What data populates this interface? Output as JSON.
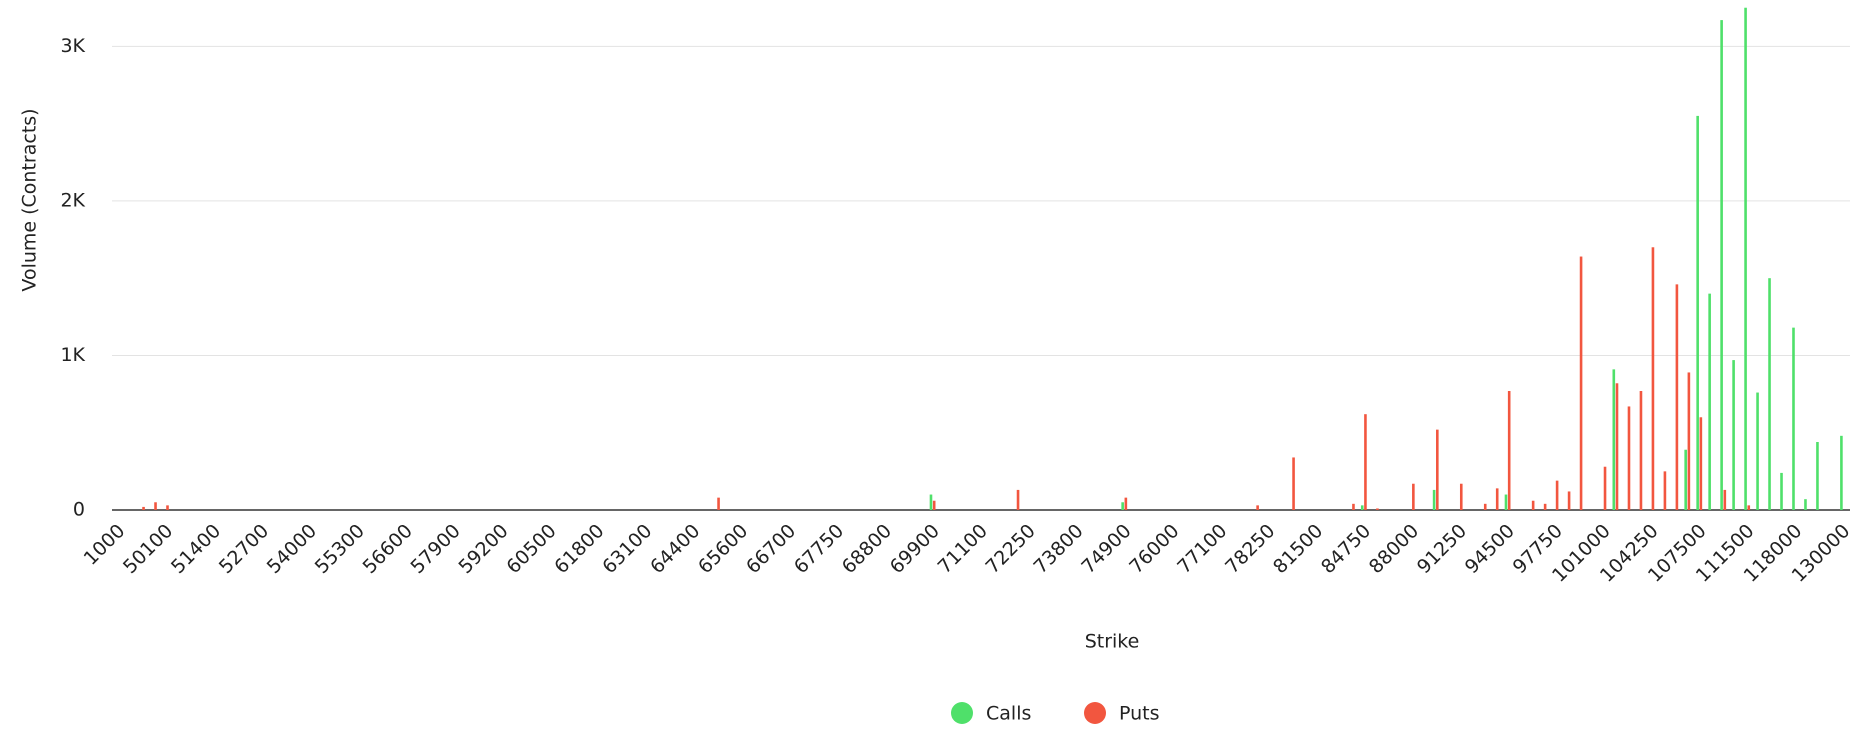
{
  "chart_data": {
    "type": "bar",
    "x_label": "Strike",
    "y_label": "Volume (Contracts)",
    "categories": [
      "1000",
      null,
      null,
      null,
      "50100",
      null,
      null,
      null,
      "51400",
      null,
      null,
      null,
      "52700",
      null,
      null,
      null,
      "54000",
      null,
      null,
      null,
      "55300",
      null,
      null,
      null,
      "56600",
      null,
      null,
      null,
      "57900",
      null,
      null,
      null,
      "59200",
      null,
      null,
      null,
      "60500",
      null,
      null,
      null,
      "61800",
      null,
      null,
      null,
      "63100",
      null,
      null,
      null,
      "64400",
      null,
      null,
      null,
      "65600",
      null,
      null,
      null,
      "66700",
      null,
      null,
      null,
      "67750",
      null,
      null,
      null,
      "68800",
      null,
      null,
      null,
      "69900",
      null,
      null,
      null,
      "71100",
      null,
      null,
      null,
      "72250",
      null,
      null,
      null,
      "73800",
      null,
      null,
      null,
      "74900",
      null,
      null,
      null,
      "76000",
      null,
      null,
      null,
      "77100",
      null,
      null,
      null,
      "78250",
      null,
      null,
      null,
      "81500",
      null,
      null,
      null,
      "84750",
      null,
      null,
      null,
      "88000",
      null,
      null,
      null,
      "91250",
      null,
      null,
      null,
      "94500",
      null,
      null,
      null,
      "97750",
      null,
      null,
      null,
      "101000",
      null,
      null,
      null,
      "104250",
      null,
      null,
      null,
      "107500",
      null,
      null,
      null,
      "111500",
      null,
      null,
      null,
      "118000",
      null,
      null,
      null,
      "130000"
    ],
    "series": [
      {
        "name": "Calls",
        "color": "#4fe06a",
        "values": [
          0,
          0,
          0,
          0,
          0,
          0,
          0,
          0,
          0,
          0,
          0,
          0,
          0,
          0,
          0,
          0,
          0,
          0,
          0,
          0,
          0,
          0,
          0,
          0,
          0,
          0,
          0,
          0,
          0,
          0,
          0,
          0,
          0,
          0,
          0,
          0,
          0,
          0,
          0,
          0,
          0,
          0,
          0,
          0,
          0,
          0,
          0,
          0,
          0,
          0,
          0,
          0,
          0,
          0,
          0,
          0,
          0,
          0,
          0,
          0,
          0,
          0,
          0,
          0,
          0,
          0,
          0,
          0,
          100,
          0,
          0,
          0,
          0,
          0,
          0,
          0,
          0,
          0,
          0,
          0,
          0,
          0,
          0,
          0,
          50,
          0,
          0,
          0,
          0,
          0,
          0,
          0,
          0,
          0,
          0,
          0,
          0,
          0,
          0,
          0,
          0,
          0,
          0,
          0,
          30,
          0,
          0,
          0,
          0,
          0,
          130,
          0,
          0,
          0,
          0,
          0,
          100,
          0,
          0,
          0,
          0,
          0,
          0,
          0,
          0,
          910,
          0,
          0,
          0,
          0,
          0,
          390,
          2550,
          1400,
          3170,
          970,
          3250,
          760,
          1500,
          240,
          1180,
          70,
          440,
          0,
          480
        ]
      },
      {
        "name": "Puts",
        "color": "#f2563f",
        "values": [
          0,
          0,
          20,
          50,
          30,
          0,
          0,
          0,
          0,
          0,
          0,
          0,
          0,
          0,
          0,
          0,
          0,
          0,
          0,
          0,
          0,
          0,
          0,
          0,
          0,
          0,
          0,
          0,
          0,
          0,
          0,
          0,
          0,
          0,
          0,
          0,
          0,
          0,
          0,
          0,
          0,
          0,
          0,
          0,
          0,
          0,
          0,
          0,
          0,
          0,
          80,
          0,
          0,
          0,
          0,
          0,
          0,
          0,
          0,
          0,
          0,
          0,
          0,
          0,
          0,
          0,
          0,
          0,
          60,
          0,
          0,
          0,
          0,
          0,
          0,
          130,
          0,
          0,
          0,
          0,
          0,
          0,
          0,
          0,
          80,
          0,
          0,
          0,
          0,
          0,
          0,
          0,
          0,
          0,
          0,
          30,
          0,
          0,
          340,
          0,
          0,
          0,
          0,
          40,
          620,
          10,
          0,
          0,
          170,
          0,
          520,
          0,
          170,
          0,
          40,
          140,
          770,
          0,
          60,
          40,
          190,
          120,
          1640,
          0,
          280,
          820,
          670,
          770,
          1700,
          250,
          1460,
          890,
          600,
          0,
          130,
          0,
          30,
          0,
          0,
          0,
          0,
          0,
          0,
          0,
          0
        ]
      }
    ],
    "ylim": [
      0,
      3300
    ],
    "yticks": [
      0,
      {
        "value": 1000,
        "label": "1K"
      },
      {
        "value": 2000,
        "label": "2K"
      },
      {
        "value": 3000,
        "label": "3K"
      }
    ],
    "grid": true,
    "legend": "bottom"
  }
}
